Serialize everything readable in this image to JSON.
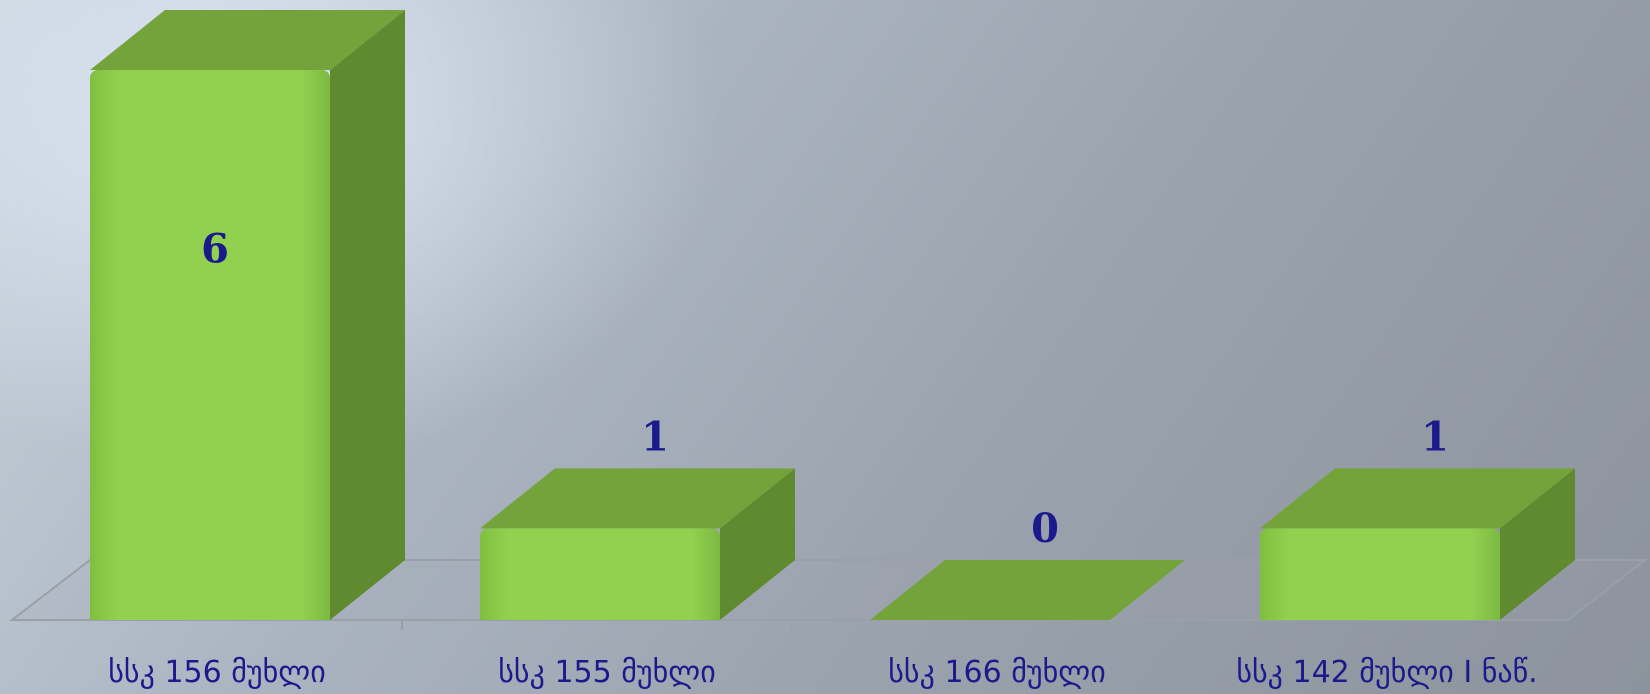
{
  "chart_data": {
    "type": "bar",
    "categories": [
      "სსკ 156 მუხლი",
      "სსკ 155 მუხლი",
      "სსკ 166 მუხლი",
      "სსკ 142 მუხლი I ნაწ."
    ],
    "values": [
      6,
      1,
      0,
      1
    ],
    "title": "",
    "xlabel": "",
    "ylabel": "",
    "ylim": [
      0,
      6
    ],
    "grid": false,
    "legend": "none",
    "style": "3d-column"
  },
  "colors": {
    "bar_front": "#92d050",
    "bar_top": "#73a33a",
    "bar_side": "#5f8a30",
    "value_label": "#1a1a8c",
    "category_label": "#1a1a8c",
    "floor_line": "#9aa0a8"
  }
}
